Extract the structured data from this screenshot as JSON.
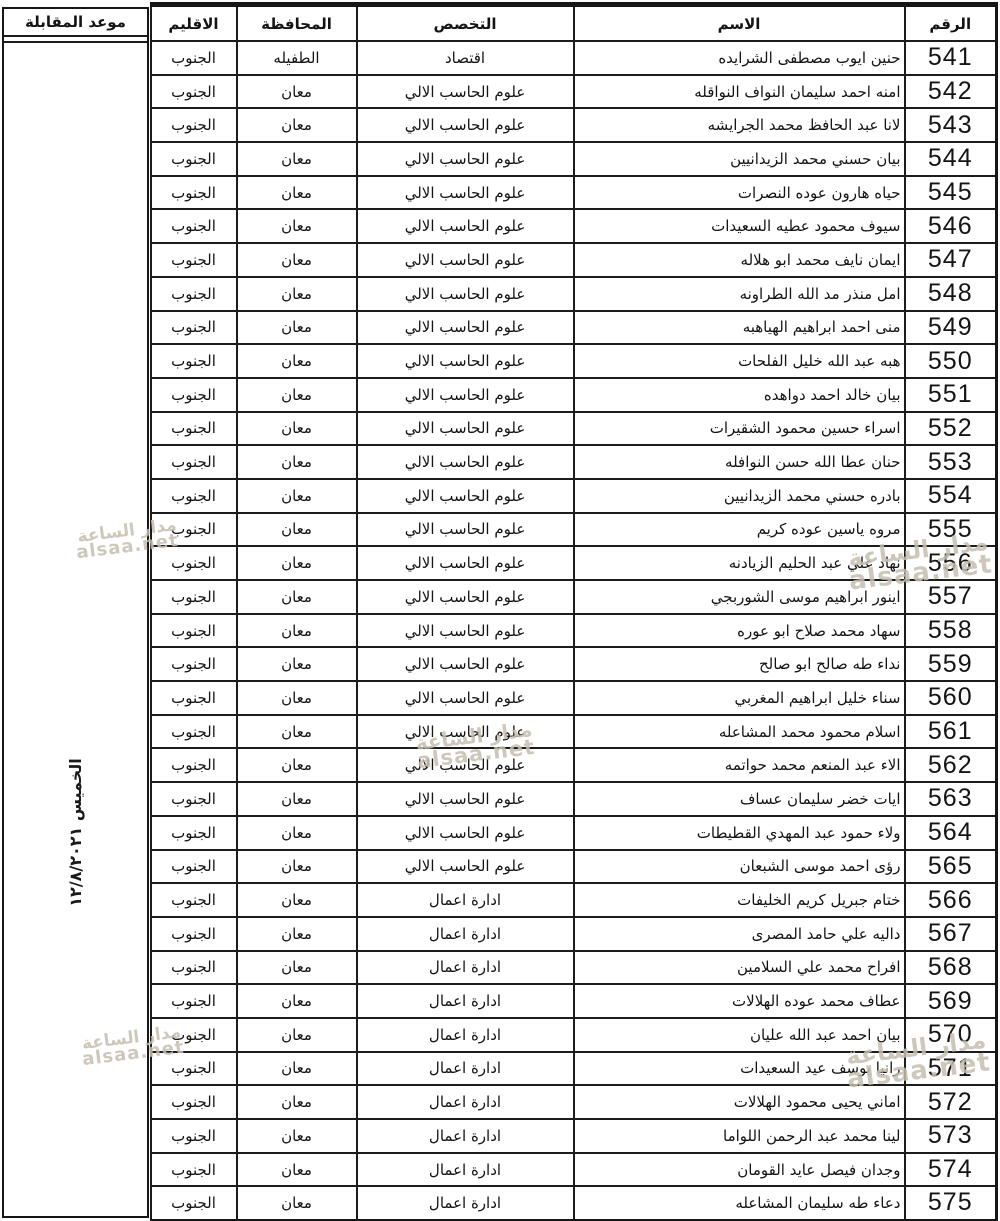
{
  "page": {
    "interview_column": {
      "header": "موعد المقابلة",
      "value": "الخميس ١٢/٨/٢٠٢١"
    },
    "watermark": {
      "line1": "مدار الساعة",
      "line2": "alsaa.net"
    },
    "table": {
      "headers": {
        "number": "الرقم",
        "name": "الاسم",
        "specialization": "التخصص",
        "governorate": "المحافظة",
        "region": "الاقليم"
      },
      "rows": [
        {
          "number": "541",
          "name": "حنين ايوب مصطفى الشرايده",
          "specialization": "اقتصاد",
          "governorate": "الطفيله",
          "region": "الجنوب"
        },
        {
          "number": "542",
          "name": "امنه احمد سليمان النواف النواقله",
          "specialization": "علوم الحاسب الالي",
          "governorate": "معان",
          "region": "الجنوب"
        },
        {
          "number": "543",
          "name": "لانا عبد الحافظ محمد الجرايشه",
          "specialization": "علوم الحاسب الالي",
          "governorate": "معان",
          "region": "الجنوب"
        },
        {
          "number": "544",
          "name": "بيان حسني محمد الزيدانيين",
          "specialization": "علوم الحاسب الالي",
          "governorate": "معان",
          "region": "الجنوب"
        },
        {
          "number": "545",
          "name": "حياه هارون عوده النصرات",
          "specialization": "علوم الحاسب الالي",
          "governorate": "معان",
          "region": "الجنوب"
        },
        {
          "number": "546",
          "name": "سيوف محمود عطيه السعيدات",
          "specialization": "علوم الحاسب الالي",
          "governorate": "معان",
          "region": "الجنوب"
        },
        {
          "number": "547",
          "name": "ايمان نايف محمد ابو هلاله",
          "specialization": "علوم الحاسب الالي",
          "governorate": "معان",
          "region": "الجنوب"
        },
        {
          "number": "548",
          "name": "امل منذر مد الله الطراونه",
          "specialization": "علوم الحاسب الالي",
          "governorate": "معان",
          "region": "الجنوب"
        },
        {
          "number": "549",
          "name": "منى احمد ابراهيم الهياهبه",
          "specialization": "علوم الحاسب الالي",
          "governorate": "معان",
          "region": "الجنوب"
        },
        {
          "number": "550",
          "name": "هبه عبد الله خليل الفلحات",
          "specialization": "علوم الحاسب الالي",
          "governorate": "معان",
          "region": "الجنوب"
        },
        {
          "number": "551",
          "name": "بيان خالد احمد دواهده",
          "specialization": "علوم الحاسب الالي",
          "governorate": "معان",
          "region": "الجنوب"
        },
        {
          "number": "552",
          "name": "اسراء حسين محمود الشقيرات",
          "specialization": "علوم الحاسب الالي",
          "governorate": "معان",
          "region": "الجنوب"
        },
        {
          "number": "553",
          "name": "حنان عطا الله حسن النوافله",
          "specialization": "علوم الحاسب الالي",
          "governorate": "معان",
          "region": "الجنوب"
        },
        {
          "number": "554",
          "name": "بادره حسني محمد الزيدانيين",
          "specialization": "علوم الحاسب الالي",
          "governorate": "معان",
          "region": "الجنوب"
        },
        {
          "number": "555",
          "name": "مروه ياسين عوده كريم",
          "specialization": "علوم الحاسب الالي",
          "governorate": "معان",
          "region": "الجنوب"
        },
        {
          "number": "556",
          "name": "نهاد علي عبد الحليم الزيادنه",
          "specialization": "علوم الحاسب الالي",
          "governorate": "معان",
          "region": "الجنوب"
        },
        {
          "number": "557",
          "name": "اينور ابراهيم موسى الشوربجي",
          "specialization": "علوم الحاسب الالي",
          "governorate": "معان",
          "region": "الجنوب"
        },
        {
          "number": "558",
          "name": "سهاد محمد صلاح ابو عوره",
          "specialization": "علوم الحاسب الالي",
          "governorate": "معان",
          "region": "الجنوب"
        },
        {
          "number": "559",
          "name": "نداء طه صالح ابو صالح",
          "specialization": "علوم الحاسب الالي",
          "governorate": "معان",
          "region": "الجنوب"
        },
        {
          "number": "560",
          "name": "سناء خليل ابراهيم المغربي",
          "specialization": "علوم الحاسب الالي",
          "governorate": "معان",
          "region": "الجنوب"
        },
        {
          "number": "561",
          "name": "اسلام محمود محمد المشاعله",
          "specialization": "علوم الحاسب الالي",
          "governorate": "معان",
          "region": "الجنوب"
        },
        {
          "number": "562",
          "name": "الاء عبد المنعم محمد حواتمه",
          "specialization": "علوم الحاسب الالي",
          "governorate": "معان",
          "region": "الجنوب"
        },
        {
          "number": "563",
          "name": "ايات خضر سليمان عساف",
          "specialization": "علوم الحاسب الالي",
          "governorate": "معان",
          "region": "الجنوب"
        },
        {
          "number": "564",
          "name": "ولاء حمود عبد المهدي القطيطات",
          "specialization": "علوم الحاسب الالي",
          "governorate": "معان",
          "region": "الجنوب"
        },
        {
          "number": "565",
          "name": "رؤى احمد موسى الشبعان",
          "specialization": "علوم الحاسب الالي",
          "governorate": "معان",
          "region": "الجنوب"
        },
        {
          "number": "566",
          "name": "ختام جبريل كريم الخليفات",
          "specialization": "ادارة اعمال",
          "governorate": "معان",
          "region": "الجنوب"
        },
        {
          "number": "567",
          "name": "داليه علي حامد المصرى",
          "specialization": "ادارة اعمال",
          "governorate": "معان",
          "region": "الجنوب"
        },
        {
          "number": "568",
          "name": "افراح محمد علي السلامين",
          "specialization": "ادارة اعمال",
          "governorate": "معان",
          "region": "الجنوب"
        },
        {
          "number": "569",
          "name": "عطاف محمد عوده الهلالات",
          "specialization": "ادارة اعمال",
          "governorate": "معان",
          "region": "الجنوب"
        },
        {
          "number": "570",
          "name": "بيان احمد عبد الله عليان",
          "specialization": "ادارة اعمال",
          "governorate": "معان",
          "region": "الجنوب"
        },
        {
          "number": "571",
          "name": "رانيا يوسف عيد السعيدات",
          "specialization": "ادارة اعمال",
          "governorate": "معان",
          "region": "الجنوب"
        },
        {
          "number": "572",
          "name": "اماني يحيى محمود الهلالات",
          "specialization": "ادارة اعمال",
          "governorate": "معان",
          "region": "الجنوب"
        },
        {
          "number": "573",
          "name": "لينا محمد عبد الرحمن اللواما",
          "specialization": "ادارة اعمال",
          "governorate": "معان",
          "region": "الجنوب"
        },
        {
          "number": "574",
          "name": "وجدان فيصل عايد القومان",
          "specialization": "ادارة اعمال",
          "governorate": "معان",
          "region": "الجنوب"
        },
        {
          "number": "575",
          "name": "دعاء طه سليمان المشاعله",
          "specialization": "ادارة اعمال",
          "governorate": "معان",
          "region": "الجنوب"
        }
      ]
    }
  }
}
